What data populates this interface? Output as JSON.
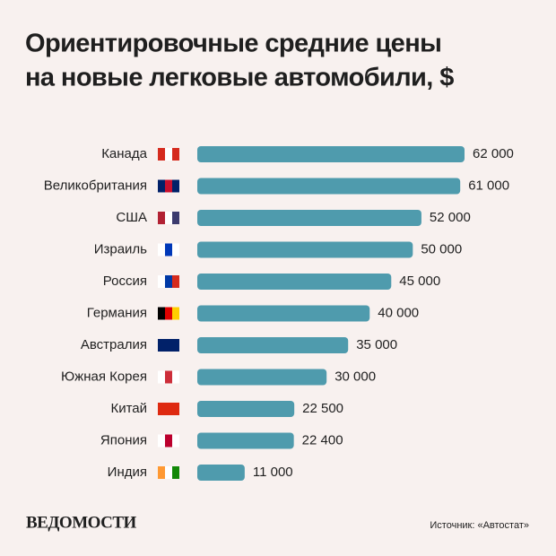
{
  "chart_data": {
    "type": "bar",
    "orientation": "horizontal",
    "title": [
      "Ориентировочные средние цены",
      "на новые легковые автомобили, $"
    ],
    "categories": [
      "Канада",
      "Великобритания",
      "США",
      "Израиль",
      "Россия",
      "Германия",
      "Австралия",
      "Южная Корея",
      "Китай",
      "Япония",
      "Индия"
    ],
    "values": [
      62000,
      61000,
      52000,
      50000,
      45000,
      40000,
      35000,
      30000,
      22500,
      22400,
      11000
    ],
    "value_labels": [
      "62 000",
      "61 000",
      "52 000",
      "50 000",
      "45 000",
      "40 000",
      "35 000",
      "30 000",
      "22 500",
      "22 400",
      "11 000"
    ],
    "color": "#4f9bad",
    "logo": "ВЕДОМОСТИ",
    "source": "Источник: «Автостат»"
  }
}
